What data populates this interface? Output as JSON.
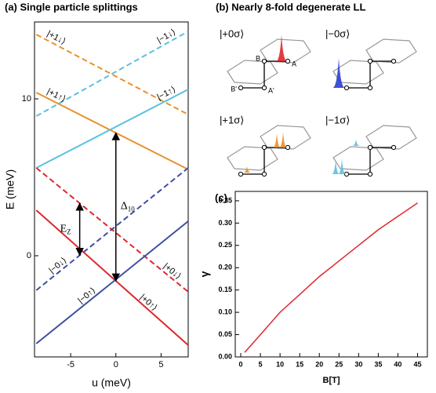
{
  "chart_data": [
    {
      "type": "line",
      "title": "(a) Single particle splittings",
      "xlabel": "u (meV)",
      "ylabel": "E (meV)",
      "xlim": [
        -9,
        8
      ],
      "ylim": [
        -6.45,
        14.9
      ],
      "xticks": [
        -5,
        0,
        5
      ],
      "yticks": [
        0,
        10
      ],
      "x": [
        -8.8,
        8
      ],
      "series": [
        {
          "name": "|+1↓⟩",
          "color": "#e8912e",
          "dashed": true,
          "values": [
            14.1,
            9.0
          ]
        },
        {
          "name": "|−1↓⟩",
          "color": "#5bc0e0",
          "dashed": true,
          "values": [
            8.9,
            14.3
          ]
        },
        {
          "name": "|+1↑⟩",
          "color": "#e8912e",
          "dashed": false,
          "values": [
            10.4,
            5.5
          ]
        },
        {
          "name": "|−1↑⟩",
          "color": "#5bc0e0",
          "dashed": false,
          "values": [
            5.6,
            10.6
          ]
        },
        {
          "name": "|+0↓⟩",
          "color": "#e0262e",
          "dashed": true,
          "values": [
            5.6,
            -2.3
          ]
        },
        {
          "name": "|−0↓⟩",
          "color": "#3c4fa0",
          "dashed": true,
          "values": [
            -2.2,
            5.6
          ]
        },
        {
          "name": "|+0↑⟩",
          "color": "#e0262e",
          "dashed": false,
          "values": [
            2.9,
            -5.7
          ]
        },
        {
          "name": "|−0↑⟩",
          "color": "#3c4fa0",
          "dashed": false,
          "values": [
            -5.6,
            2.2
          ]
        }
      ],
      "annotations": [
        {
          "text": "E",
          "subscript": "Z"
        },
        {
          "text": "Δ",
          "subscript": "10"
        }
      ]
    },
    {
      "type": "line",
      "title": "(c)",
      "xlabel": "B[T]",
      "ylabel": "γ",
      "xlim": [
        -1.4,
        47.5
      ],
      "ylim": [
        0,
        0.371
      ],
      "xticks": [
        0,
        5,
        10,
        15,
        20,
        25,
        30,
        35,
        40,
        45
      ],
      "yticks": [
        {
          "value": 0,
          "label": "0.00"
        },
        {
          "value": 0.05,
          "label": "0.05"
        },
        {
          "value": 0.1,
          "label": "0.10"
        },
        {
          "value": 0.15,
          "label": "0.15"
        },
        {
          "value": 0.2,
          "label": "0.20"
        },
        {
          "value": 0.25,
          "label": "0.25"
        },
        {
          "value": 0.3,
          "label": "0.30"
        },
        {
          "value": 0.35,
          "label": "0.35"
        }
      ],
      "x": [
        1,
        5,
        10,
        15,
        20,
        25,
        30,
        35,
        40,
        45
      ],
      "series": [
        {
          "color": "#e0262e",
          "values": [
            0.01,
            0.05,
            0.1,
            0.14,
            0.18,
            0.215,
            0.25,
            0.285,
            0.315,
            0.345
          ]
        }
      ]
    }
  ],
  "diagram": {
    "title": "(b) Nearly 8-fold degenerate LL",
    "states": [
      "|+0σ⟩",
      "|−0σ⟩",
      "|+1σ⟩",
      "|−1σ⟩"
    ],
    "colors": [
      "#e0262e",
      "#2a3fd0",
      "#e8912e",
      "#5bc0e0"
    ],
    "sites": [
      "B",
      "A",
      "B'",
      "A'"
    ]
  }
}
